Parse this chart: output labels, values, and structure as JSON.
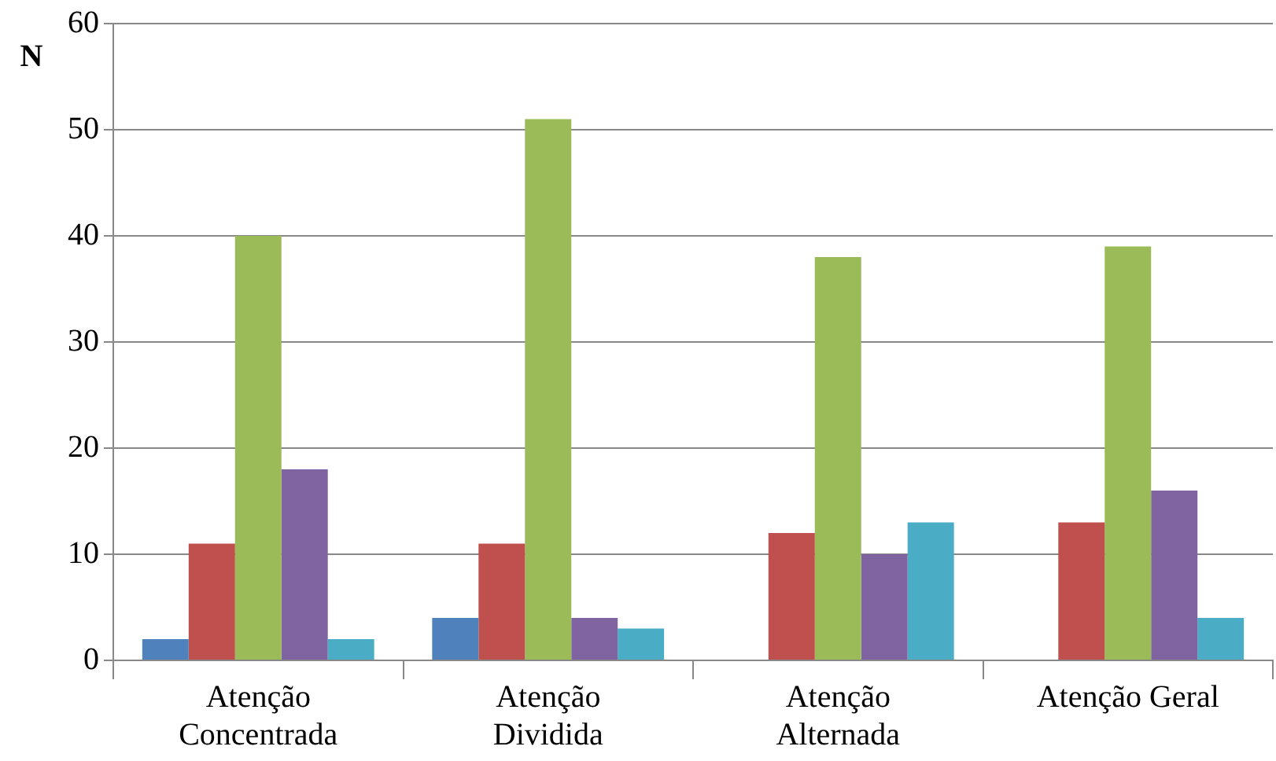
{
  "chart_data": {
    "type": "bar",
    "ylabel": "N",
    "categories": [
      "Atenção\nConcentrada",
      "Atenção\nDividida",
      "Atenção\nAlternada",
      "Atenção Geral"
    ],
    "series": [
      {
        "color": "#4f81bd",
        "values": [
          2,
          4,
          null,
          null
        ]
      },
      {
        "color": "#c0504d",
        "values": [
          11,
          11,
          12,
          13
        ]
      },
      {
        "color": "#9bbb59",
        "values": [
          40,
          51,
          38,
          39
        ]
      },
      {
        "color": "#8064a2",
        "values": [
          18,
          4,
          10,
          16
        ]
      },
      {
        "color": "#4bacc6",
        "values": [
          2,
          3,
          13,
          4
        ]
      }
    ],
    "ylim": [
      0,
      60
    ],
    "yticks": [
      0,
      10,
      20,
      30,
      40,
      50,
      60
    ],
    "grid": "y",
    "legend": false
  }
}
